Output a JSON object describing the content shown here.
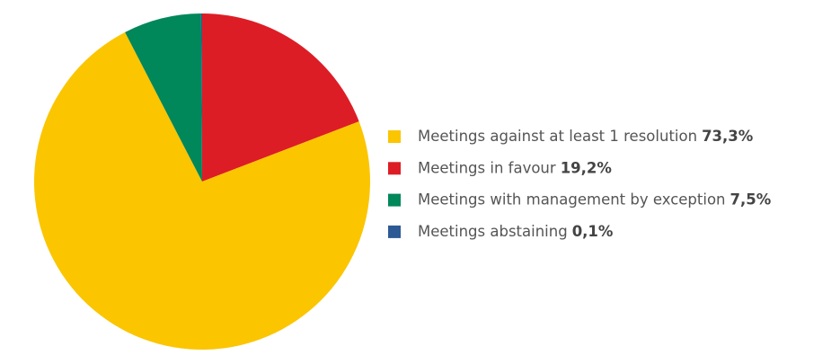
{
  "chart_data": {
    "type": "pie",
    "categories": [
      "Meetings against at least 1 resolution",
      "Meetings in favour",
      "Meetings with management by exception",
      "Meetings abstaining"
    ],
    "values": [
      73.3,
      19.2,
      7.5,
      0.1
    ],
    "value_labels": [
      "73,3%",
      "19,2%",
      "7,5%",
      "0,1%"
    ],
    "colors": [
      "#fbc500",
      "#dd1d25",
      "#00875a",
      "#2d5a94"
    ],
    "legend": "right"
  }
}
